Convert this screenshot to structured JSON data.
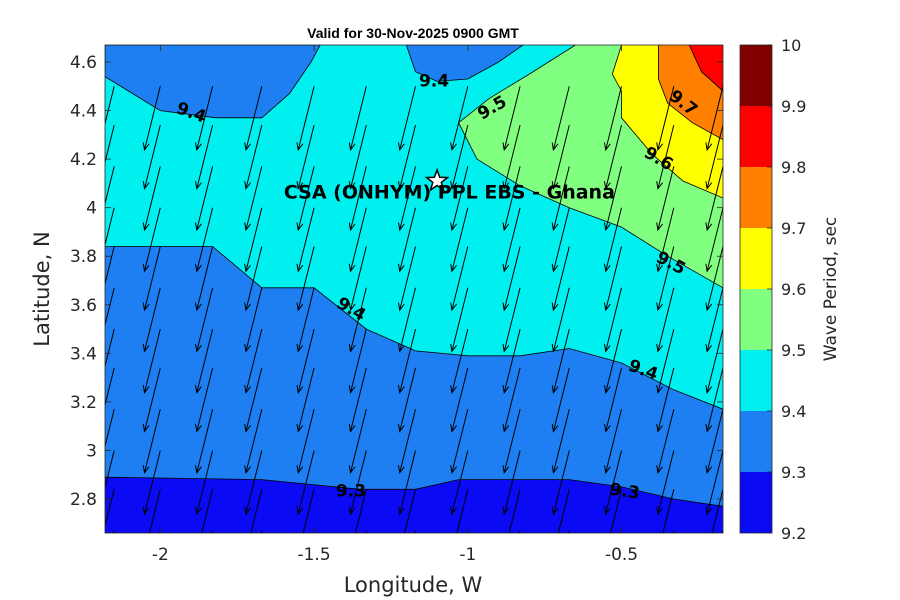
{
  "chart_data": {
    "type": "contourf",
    "title": "Valid for 30-Nov-2025 0900 GMT",
    "xlabel": "Longitude, W",
    "ylabel": "Latitude, N",
    "xlim": [
      -2.18,
      -0.17
    ],
    "ylim": [
      2.66,
      4.67
    ],
    "xticks": [
      -2,
      -1.5,
      -1,
      -0.5
    ],
    "xtick_labels": [
      "-2",
      "-1.5",
      "-1",
      "-0.5"
    ],
    "yticks": [
      2.8,
      3,
      3.2,
      3.4,
      3.6,
      3.8,
      4,
      4.2,
      4.4,
      4.6
    ],
    "ytick_labels": [
      "2.8",
      "3",
      "3.2",
      "3.4",
      "3.6",
      "3.8",
      "4",
      "4.2",
      "4.4",
      "4.6"
    ],
    "colorbar": {
      "label": "Wave Period, sec",
      "range": [
        9.2,
        10
      ],
      "levels": [
        9.2,
        9.3,
        9.4,
        9.5,
        9.6,
        9.7,
        9.8,
        9.9,
        10
      ],
      "tick_labels": [
        "9.2",
        "9.3",
        "9.4",
        "9.5",
        "9.6",
        "9.7",
        "9.8",
        "9.9",
        "10"
      ],
      "colors": [
        "#0a0af5",
        "#1e7ff2",
        "#00f0f0",
        "#80ff80",
        "#ffff00",
        "#ff8000",
        "#ff0000",
        "#800000"
      ]
    },
    "contour_bands": [
      {
        "level": 9.3,
        "color": "#1e7ff2",
        "boundary": [
          [
            -2.18,
            2.89
          ],
          [
            -1.67,
            2.88
          ],
          [
            -1.35,
            2.84
          ],
          [
            -1.17,
            2.84
          ],
          [
            -1.03,
            2.88
          ],
          [
            -0.67,
            2.88
          ],
          [
            -0.5,
            2.85
          ],
          [
            -0.33,
            2.8
          ],
          [
            -0.17,
            2.77
          ]
        ]
      },
      {
        "level": 9.4,
        "color": "#00f0f0",
        "boundary": [
          [
            -2.18,
            3.84
          ],
          [
            -1.83,
            3.84
          ],
          [
            -1.67,
            3.67
          ],
          [
            -1.5,
            3.67
          ],
          [
            -1.33,
            3.5
          ],
          [
            -1.17,
            3.41
          ],
          [
            -1.0,
            3.39
          ],
          [
            -0.83,
            3.39
          ],
          [
            -0.67,
            3.42
          ],
          [
            -0.5,
            3.36
          ],
          [
            -0.33,
            3.25
          ],
          [
            -0.17,
            3.17
          ]
        ]
      },
      {
        "level": 9.5,
        "color": "#80ff80",
        "boundary": [
          [
            -0.17,
            3.67
          ],
          [
            -0.35,
            3.8
          ],
          [
            -0.5,
            3.92
          ],
          [
            -0.67,
            4.0
          ],
          [
            -0.83,
            4.09
          ],
          [
            -0.97,
            4.2
          ],
          [
            -1.03,
            4.35
          ],
          [
            -0.93,
            4.45
          ],
          [
            -0.8,
            4.55
          ],
          [
            -0.65,
            4.67
          ]
        ]
      },
      {
        "level": 9.6,
        "color": "#ffff00",
        "boundary": [
          [
            -0.17,
            4.04
          ],
          [
            -0.3,
            4.11
          ],
          [
            -0.4,
            4.22
          ],
          [
            -0.5,
            4.37
          ],
          [
            -0.5,
            4.48
          ],
          [
            -0.53,
            4.55
          ],
          [
            -0.5,
            4.67
          ]
        ]
      },
      {
        "level": 9.7,
        "color": "#ff8000",
        "boundary": [
          [
            -0.17,
            4.28
          ],
          [
            -0.27,
            4.35
          ],
          [
            -0.35,
            4.43
          ],
          [
            -0.38,
            4.53
          ],
          [
            -0.38,
            4.67
          ]
        ]
      },
      {
        "level": 9.8,
        "color": "#ff0000",
        "boundary": [
          [
            -0.17,
            4.48
          ],
          [
            -0.24,
            4.56
          ],
          [
            -0.28,
            4.67
          ]
        ]
      }
    ],
    "islands_9_3": [
      {
        "level": 9.3,
        "points": [
          [
            -2.18,
            4.67
          ],
          [
            -1.48,
            4.67
          ],
          [
            -1.51,
            4.6
          ],
          [
            -1.58,
            4.47
          ],
          [
            -1.67,
            4.37
          ],
          [
            -1.82,
            4.37
          ],
          [
            -2.0,
            4.4
          ],
          [
            -2.18,
            4.54
          ]
        ]
      },
      {
        "level": 9.3,
        "points": [
          [
            -1.2,
            4.67
          ],
          [
            -0.82,
            4.67
          ],
          [
            -0.9,
            4.6
          ],
          [
            -1.0,
            4.53
          ],
          [
            -1.1,
            4.52
          ],
          [
            -1.17,
            4.56
          ]
        ]
      }
    ],
    "contour_labels": [
      {
        "text": "9.3",
        "x": -1.38,
        "y": 2.83,
        "angle": 0
      },
      {
        "text": "9.3",
        "x": -0.49,
        "y": 2.83,
        "angle": 8
      },
      {
        "text": "9.4",
        "x": -1.38,
        "y": 3.58,
        "angle": 30
      },
      {
        "text": "9.4",
        "x": -0.43,
        "y": 3.33,
        "angle": 20
      },
      {
        "text": "9.4",
        "x": -1.9,
        "y": 4.39,
        "angle": 20
      },
      {
        "text": "9.4",
        "x": -1.11,
        "y": 4.52,
        "angle": 0
      },
      {
        "text": "9.5",
        "x": -0.92,
        "y": 4.41,
        "angle": -30
      },
      {
        "text": "9.5",
        "x": -0.34,
        "y": 3.77,
        "angle": 28
      },
      {
        "text": "9.6",
        "x": -0.38,
        "y": 4.2,
        "angle": 30
      },
      {
        "text": "9.7",
        "x": -0.3,
        "y": 4.43,
        "angle": 38
      }
    ],
    "site_marker": {
      "x": -1.1,
      "y": 4.11,
      "symbol": "star"
    },
    "site_label": {
      "text": "CSA (ONHYM) PPL EBS  - Ghana",
      "x": -1.06,
      "y": 4.05
    },
    "vector_field": {
      "x": [
        -2.15,
        -2.0,
        -1.83,
        -1.67,
        -1.5,
        -1.33,
        -1.17,
        -1.0,
        -0.83,
        -0.67,
        -0.5,
        -0.33,
        -0.17
      ],
      "y": [
        2.67,
        2.84,
        3.0,
        3.17,
        3.34,
        3.5,
        3.67,
        3.84,
        4.0,
        4.17,
        4.34,
        4.5
      ],
      "direction_deg": 14,
      "length_lat": 0.27
    }
  }
}
